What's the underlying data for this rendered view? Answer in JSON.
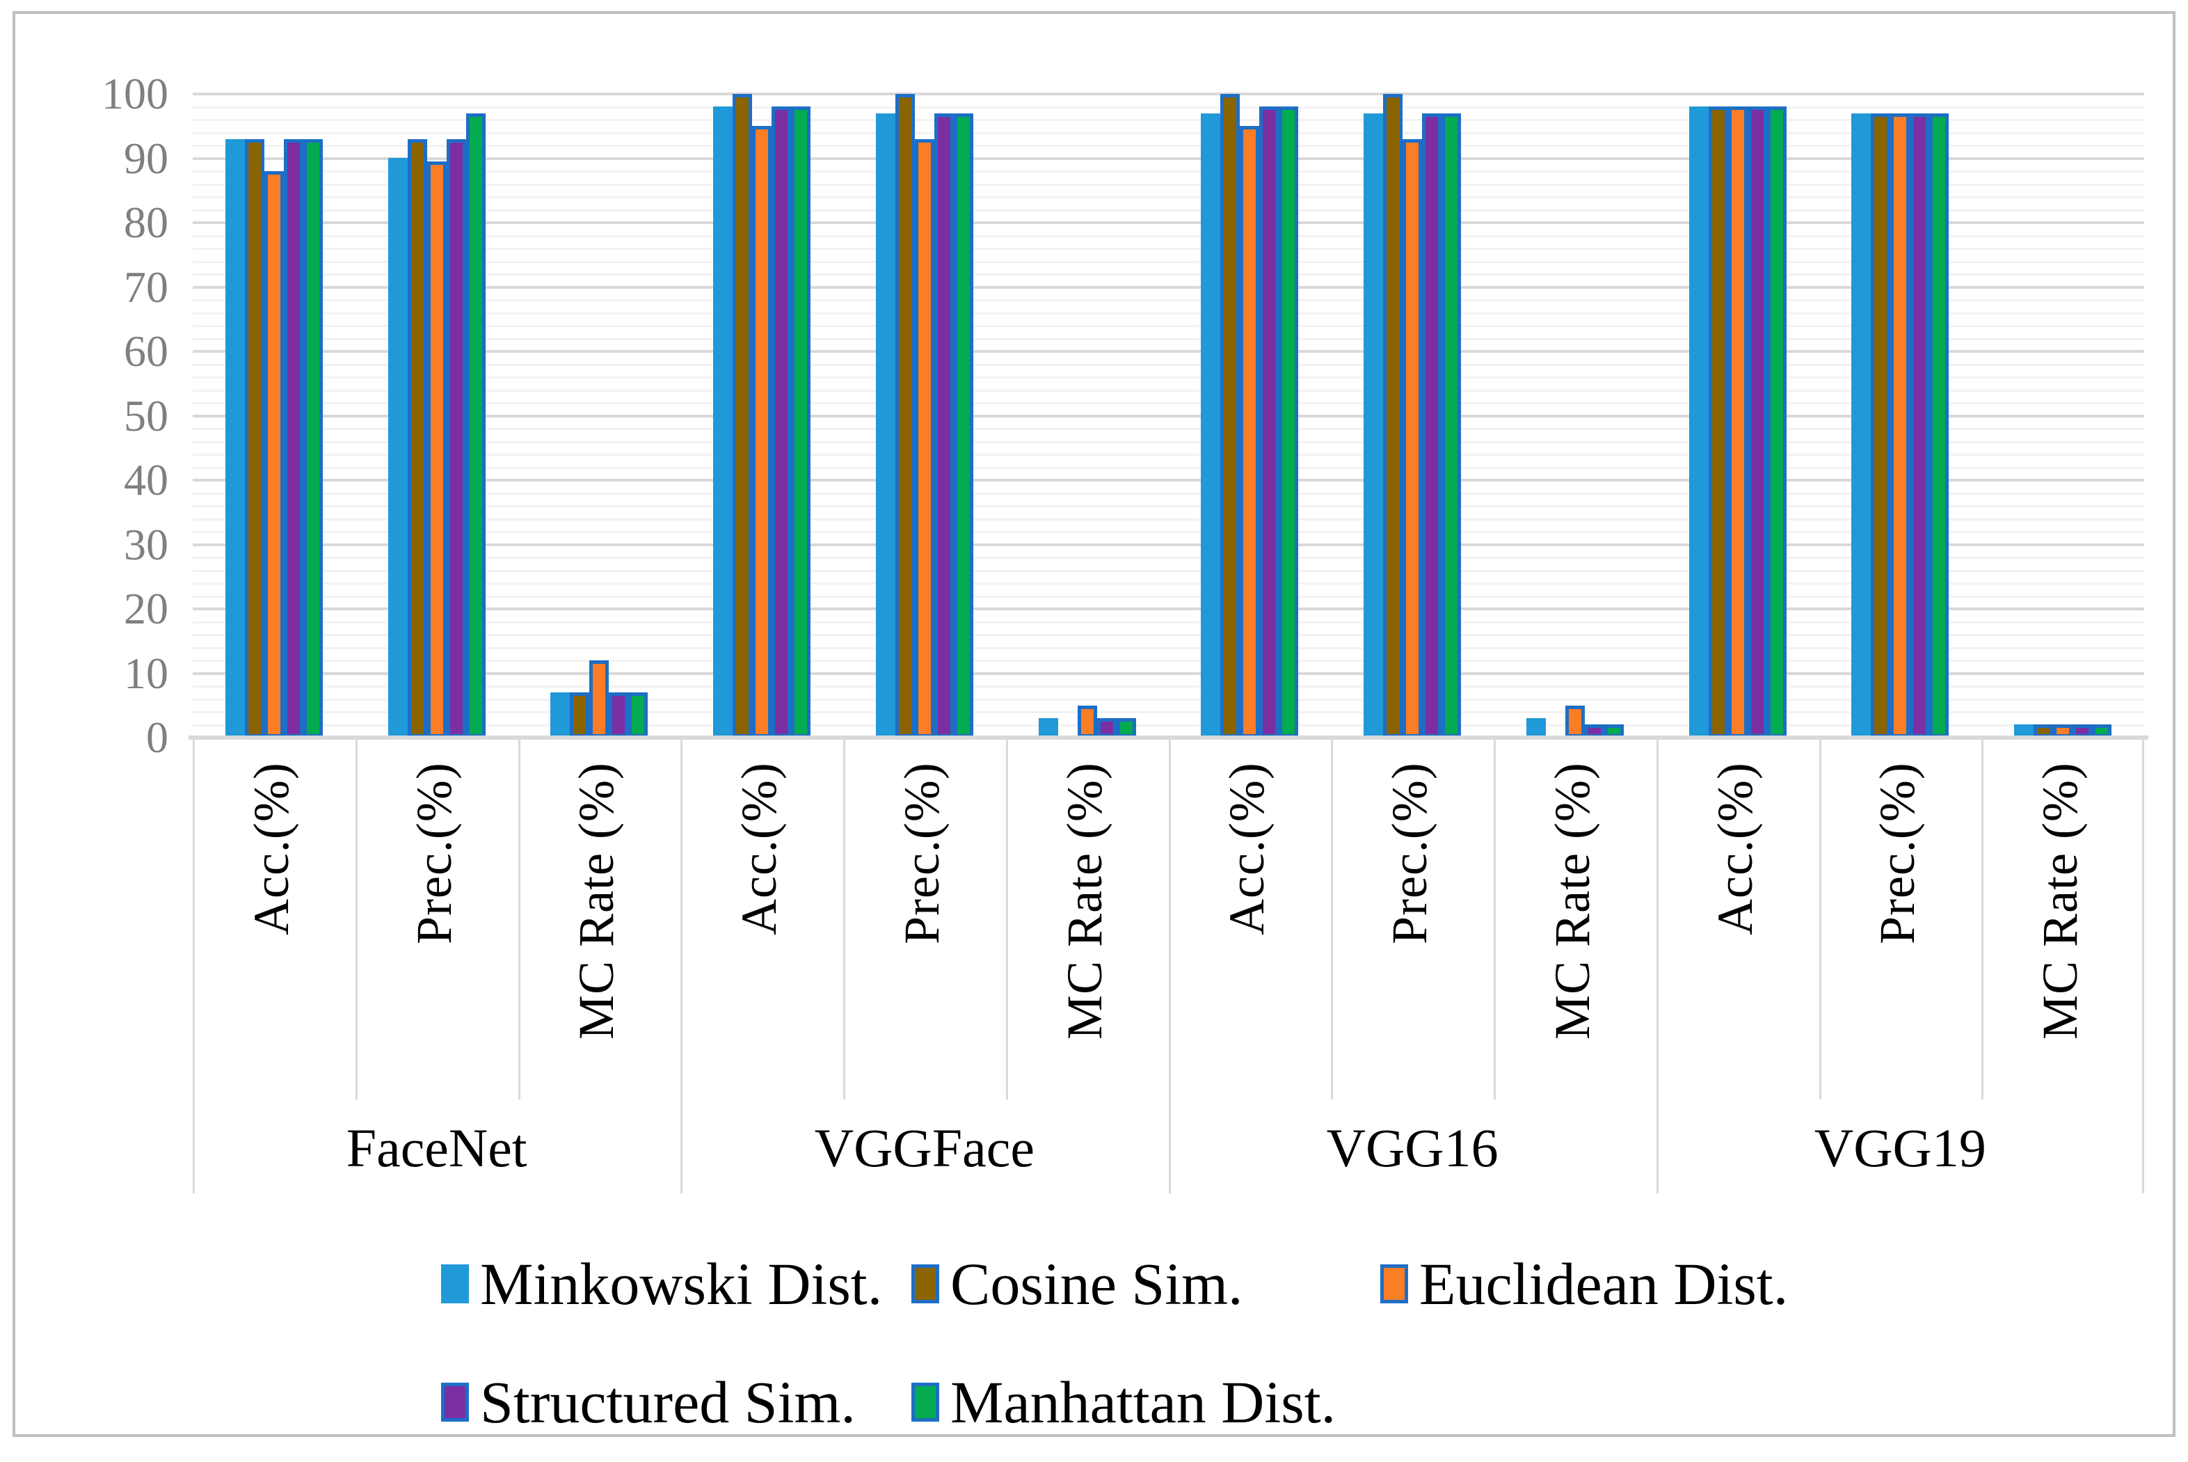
{
  "chart_data": {
    "type": "bar",
    "title": "",
    "xlabel": "",
    "ylabel": "",
    "ylim": [
      0,
      100
    ],
    "y_ticks": [
      0,
      10,
      20,
      30,
      40,
      50,
      60,
      70,
      80,
      90,
      100
    ],
    "minor_grid_step": 2,
    "major_grid_step": 10,
    "grid_on": true,
    "legend_position": "bottom",
    "groups": [
      "FaceNet",
      "VGGFace",
      "VGG16",
      "VGG19"
    ],
    "metrics": [
      "Acc.(%)",
      "Prec.(%)",
      "MC Rate (%)"
    ],
    "series": [
      {
        "name": "Minkowski Dist.",
        "color": "#2099D8",
        "outlined": false,
        "values": {
          "FaceNet": [
            93,
            90,
            7
          ],
          "VGGFace": [
            98,
            97,
            3
          ],
          "VGG16": [
            97,
            97,
            3
          ],
          "VGG19": [
            98,
            97,
            2
          ]
        }
      },
      {
        "name": "Cosine Sim.",
        "color": "#8A6400",
        "outlined": true,
        "values": {
          "FaceNet": [
            93,
            93,
            7
          ],
          "VGGFace": [
            100,
            100,
            0
          ],
          "VGG16": [
            100,
            100,
            0
          ],
          "VGG19": [
            98,
            97,
            2
          ]
        }
      },
      {
        "name": "Euclidean Dist.",
        "color": "#FB7D26",
        "outlined": true,
        "values": {
          "FaceNet": [
            88,
            89.5,
            12
          ],
          "VGGFace": [
            95,
            93,
            5
          ],
          "VGG16": [
            95,
            93,
            5
          ],
          "VGG19": [
            98,
            97,
            2
          ]
        }
      },
      {
        "name": "Structured Sim.",
        "color": "#7B2FA3",
        "outlined": true,
        "values": {
          "FaceNet": [
            93,
            93,
            7
          ],
          "VGGFace": [
            98,
            97,
            3
          ],
          "VGG16": [
            98,
            97,
            2
          ],
          "VGG19": [
            98,
            97,
            2
          ]
        }
      },
      {
        "name": "Manhattan Dist.",
        "color": "#04AB50",
        "outlined": true,
        "values": {
          "FaceNet": [
            93,
            97,
            7
          ],
          "VGGFace": [
            98,
            97,
            3
          ],
          "VGG16": [
            98,
            97,
            2
          ],
          "VGG19": [
            98,
            97,
            2
          ]
        }
      }
    ],
    "legend_rows": [
      [
        "Minkowski Dist.",
        "Cosine Sim.",
        "Euclidean Dist."
      ],
      [
        "Structured Sim.",
        "Manhattan Dist."
      ]
    ],
    "outline_color": "#1D6EC6",
    "colors": {
      "major_gridline": "#D9D9D9",
      "minor_gridline": "#F2F2F2",
      "axis_text": "#7F7F7F",
      "frame_border": "#BFBFBF",
      "label_text": "#000000"
    }
  }
}
